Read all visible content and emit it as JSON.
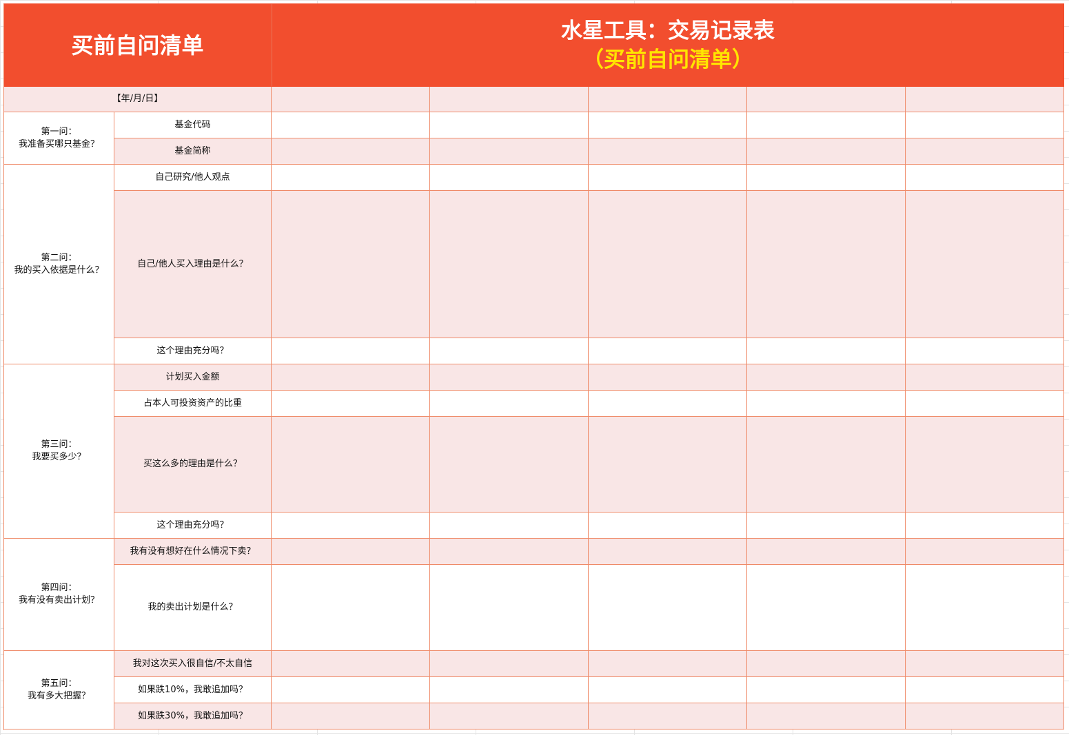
{
  "header": {
    "left_title": "买前自问清单",
    "right_title": "水星工具：交易记录表",
    "right_subtitle": "（买前自问清单）"
  },
  "date_label": "【年/月/日】",
  "groups": [
    {
      "question": "第一问：",
      "text": "我准备买哪只基金？",
      "items": [
        "基金代码",
        "基金简称"
      ]
    },
    {
      "question": "第二问：",
      "text": "我的买入依据是什么？",
      "items": [
        "自己研究/他人观点",
        "自己/他人买入理由是什么？",
        "这个理由充分吗？"
      ]
    },
    {
      "question": "第三问：",
      "text": "我要买多少？",
      "items": [
        "计划买入金额",
        "占本人可投资资产的比重",
        "买这么多的理由是什么？",
        "这个理由充分吗？"
      ]
    },
    {
      "question": "第四问：",
      "text": "我有没有卖出计划？",
      "items": [
        "我有没有想好在什么情况下卖？",
        "我的卖出计划是什么？"
      ]
    },
    {
      "question": "第五问：",
      "text": "我有多大把握？",
      "items": [
        "我对这次买入很自信/不太自信",
        "如果跌10%，我敢追加吗？",
        "如果跌30%，我敢追加吗？"
      ]
    }
  ],
  "colors": {
    "header": "#f24e2e",
    "subtitle": "#ffe500",
    "shade": "#f9e6e6",
    "border": "#ef8a68"
  }
}
